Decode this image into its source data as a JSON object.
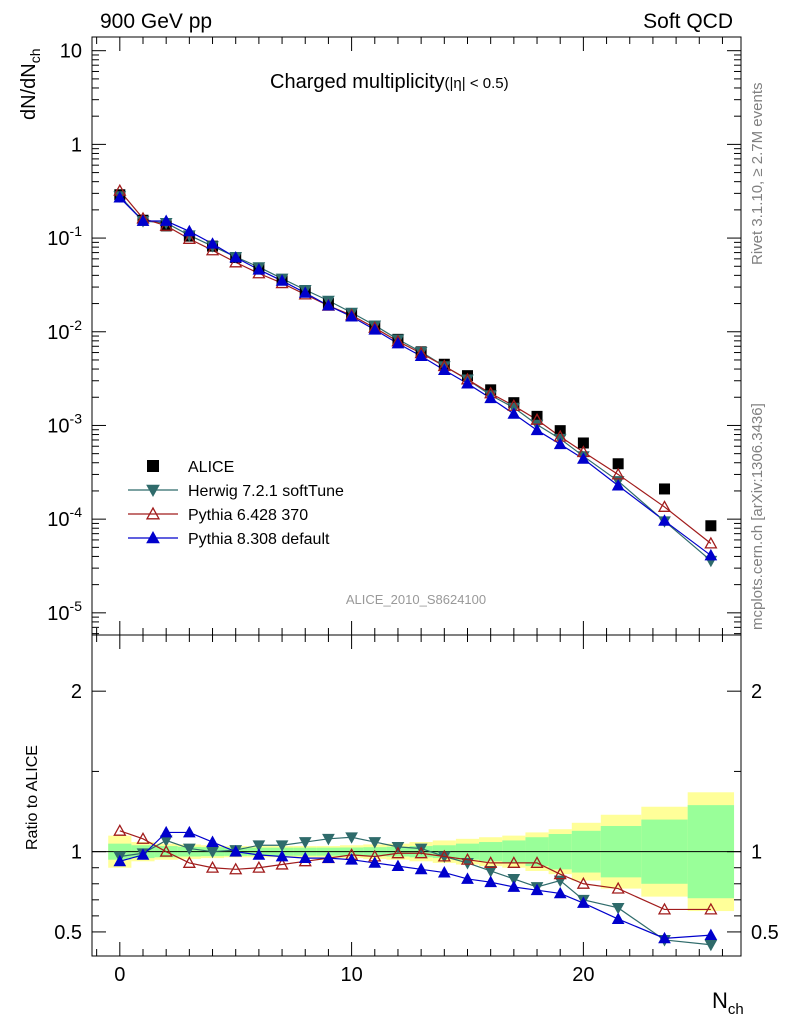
{
  "header": {
    "left": "900 GeV pp",
    "right": "Soft QCD"
  },
  "side_labels": {
    "rivet": "Rivet 3.1.10, ≥ 2.7M events",
    "mcplots": "mcplots.cern.ch [arXiv:1306.3436]"
  },
  "chart_data": [
    {
      "type": "scatter",
      "title": "Charged multiplicity",
      "title_suffix": "(|η| < 0.5)",
      "ylabel": "dN/dN_ch",
      "xlabel": "N_ch",
      "yscale": "log",
      "xlim": [
        -1.2,
        26.8
      ],
      "ylim": [
        5.8e-06,
        14
      ],
      "watermark": "ALICE_2010_S8624100",
      "x_ticks": [
        0,
        10,
        20
      ],
      "y_ticks": [
        "10",
        "1",
        "10^-1",
        "10^-2",
        "10^-3",
        "10^-4",
        "10^-5"
      ],
      "y_tick_values": [
        10,
        1,
        0.1,
        0.01,
        0.001,
        0.0001,
        1e-05
      ],
      "legend_position": "bottom-left",
      "x": [
        0,
        1,
        2,
        3,
        4,
        5,
        6,
        7,
        8,
        9,
        10,
        11,
        12,
        13,
        14,
        15,
        16,
        17,
        18,
        19,
        20,
        21.5,
        23.5,
        25.5
      ],
      "series": [
        {
          "name": "ALICE",
          "color": "#000000",
          "marker": "square",
          "values": [
            0.29,
            0.155,
            0.135,
            0.105,
            0.082,
            0.062,
            0.047,
            0.036,
            0.027,
            0.02,
            0.0155,
            0.0115,
            0.0083,
            0.0061,
            0.0045,
            0.0034,
            0.0024,
            0.00175,
            0.00125,
            0.00088,
            0.00065,
            0.00039,
            0.00021,
            8.5e-05
          ]
        },
        {
          "name": "Herwig 7.2.1 softTune",
          "color": "#2f6b6b",
          "marker": "triangle-down",
          "values": [
            0.28,
            0.152,
            0.145,
            0.107,
            0.082,
            0.063,
            0.049,
            0.037,
            0.028,
            0.0215,
            0.016,
            0.0117,
            0.0083,
            0.0061,
            0.0043,
            0.0031,
            0.0021,
            0.00155,
            0.00102,
            0.00072,
            0.00047,
            0.000255,
            9.5e-05,
            3.6e-05
          ]
        },
        {
          "name": "Pythia 6.428 370",
          "color": "#a11c1c",
          "marker": "triangle-up-open",
          "values": [
            0.32,
            0.162,
            0.135,
            0.098,
            0.074,
            0.055,
            0.042,
            0.033,
            0.025,
            0.019,
            0.015,
            0.011,
            0.0079,
            0.0059,
            0.0043,
            0.0031,
            0.0022,
            0.00162,
            0.00115,
            0.00076,
            0.00052,
            0.0003,
            0.000135,
            5.5e-05
          ]
        },
        {
          "name": "Pythia 8.308 default",
          "color": "#0000cc",
          "marker": "triangle-up",
          "values": [
            0.27,
            0.152,
            0.152,
            0.118,
            0.087,
            0.062,
            0.046,
            0.035,
            0.026,
            0.019,
            0.0145,
            0.0105,
            0.0075,
            0.0055,
            0.0039,
            0.0028,
            0.00195,
            0.00133,
            0.00089,
            0.00063,
            0.00044,
            0.000228,
            9.6e-05,
            4.1e-05
          ]
        }
      ]
    },
    {
      "type": "scatter",
      "ylabel": "Ratio to ALICE",
      "xlabel": "N_ch",
      "xlim": [
        -1.2,
        26.8
      ],
      "ylim": [
        0.35,
        2.35
      ],
      "y_ticks": [
        "2",
        "1",
        "0.5"
      ],
      "y_tick_values": [
        2,
        1,
        0.5
      ],
      "x_ticks": [
        0,
        10,
        20
      ],
      "reference_line": 1,
      "x": [
        0,
        1,
        2,
        3,
        4,
        5,
        6,
        7,
        8,
        9,
        10,
        11,
        12,
        13,
        14,
        15,
        16,
        17,
        18,
        19,
        20,
        21.5,
        23.5,
        25.5
      ],
      "bands": [
        {
          "name": "stat",
          "color": "#99ff99",
          "half_width": [
            0.05,
            0.04,
            0.035,
            0.03,
            0.028,
            0.026,
            0.025,
            0.025,
            0.025,
            0.025,
            0.026,
            0.028,
            0.03,
            0.035,
            0.04,
            0.05,
            0.06,
            0.07,
            0.09,
            0.11,
            0.13,
            0.16,
            0.2,
            0.29
          ]
        },
        {
          "name": "total",
          "color": "#ffff99",
          "half_width": [
            0.1,
            0.06,
            0.05,
            0.045,
            0.04,
            0.035,
            0.035,
            0.035,
            0.035,
            0.035,
            0.04,
            0.045,
            0.05,
            0.06,
            0.07,
            0.08,
            0.09,
            0.1,
            0.12,
            0.14,
            0.18,
            0.23,
            0.28,
            0.37
          ]
        }
      ],
      "series": [
        {
          "name": "Herwig 7.2.1 softTune",
          "color": "#2f6b6b",
          "marker": "triangle-down",
          "values": [
            0.97,
            0.99,
            1.07,
            1.02,
            1.0,
            1.01,
            1.04,
            1.04,
            1.06,
            1.08,
            1.09,
            1.06,
            1.03,
            1.02,
            0.97,
            0.93,
            0.88,
            0.83,
            0.78,
            0.82,
            0.7,
            0.65,
            0.45,
            0.42
          ]
        },
        {
          "name": "Pythia 6.428 370",
          "color": "#a11c1c",
          "marker": "triangle-up-open",
          "values": [
            1.13,
            1.08,
            1.0,
            0.93,
            0.9,
            0.89,
            0.9,
            0.92,
            0.94,
            0.96,
            0.98,
            0.97,
            0.99,
            0.99,
            0.97,
            0.95,
            0.93,
            0.93,
            0.93,
            0.86,
            0.8,
            0.77,
            0.64,
            0.64
          ]
        },
        {
          "name": "Pythia 8.308 default",
          "color": "#0000cc",
          "marker": "triangle-up",
          "values": [
            0.94,
            0.98,
            1.12,
            1.12,
            1.06,
            1.0,
            0.98,
            0.97,
            0.96,
            0.96,
            0.95,
            0.93,
            0.91,
            0.89,
            0.87,
            0.83,
            0.81,
            0.78,
            0.76,
            0.74,
            0.68,
            0.58,
            0.46,
            0.48
          ]
        }
      ]
    }
  ]
}
